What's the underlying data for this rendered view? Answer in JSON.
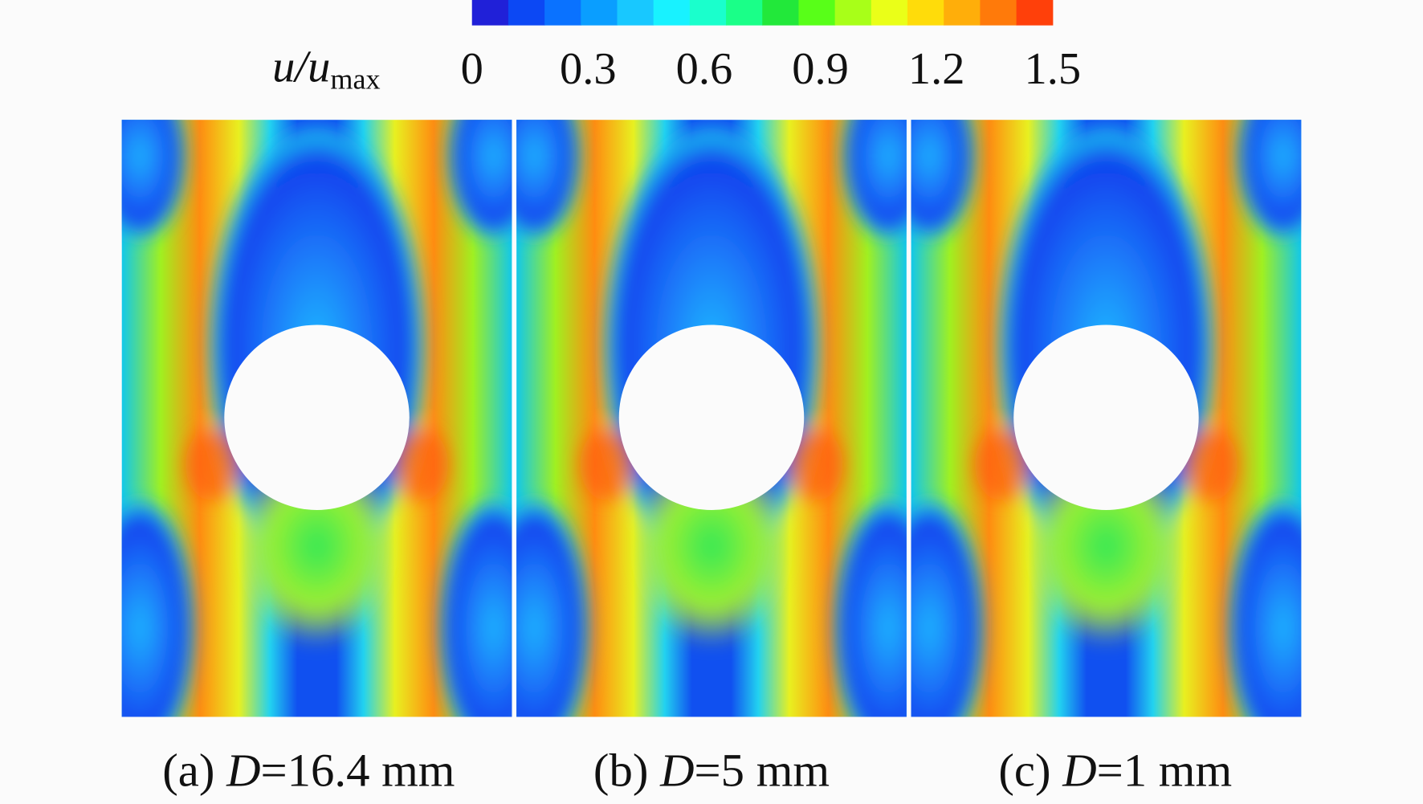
{
  "colorbar": {
    "label": {
      "main": "u/u",
      "sub": "max"
    },
    "range": [
      0,
      1.5
    ],
    "ticks": [
      0,
      0.3,
      0.6,
      0.9,
      1.2,
      1.5
    ],
    "colors": [
      "#2020d8",
      "#0c48f4",
      "#0a72ff",
      "#0a9eff",
      "#18c8ff",
      "#18f2ff",
      "#1affcc",
      "#1aff88",
      "#22e83a",
      "#58ff18",
      "#a8ff18",
      "#eaff18",
      "#ffdc0a",
      "#ffae0a",
      "#ff7a0a",
      "#ff400a"
    ]
  },
  "panels": [
    {
      "caption": {
        "prefix": "(a) ",
        "var": "D",
        "rest": "=16.4 mm"
      }
    },
    {
      "caption": {
        "prefix": "(b) ",
        "var": "D",
        "rest": "=5 mm"
      }
    },
    {
      "caption": {
        "prefix": "(c) ",
        "var": "D",
        "rest": "=1 mm"
      }
    }
  ]
}
